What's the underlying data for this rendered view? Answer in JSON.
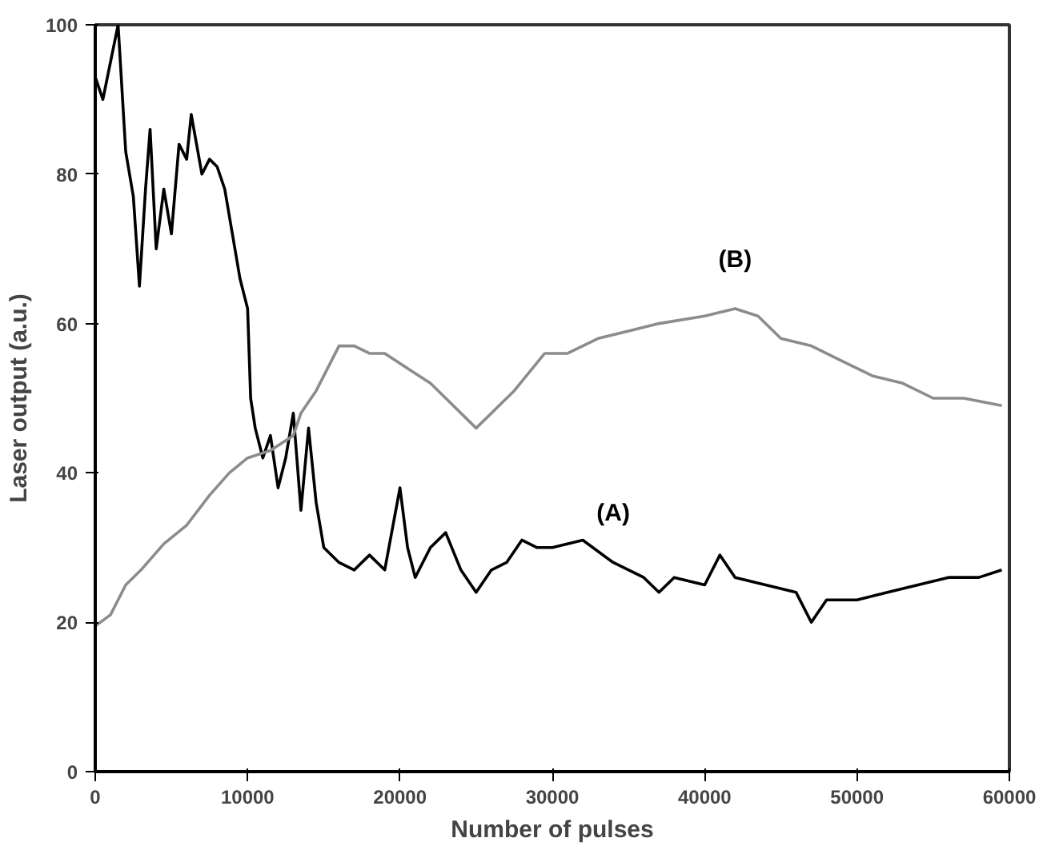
{
  "chart_data": {
    "type": "line",
    "xlabel": "Number of pulses",
    "ylabel": "Laser output (a.u.)",
    "xlim": [
      0,
      60000
    ],
    "ylim": [
      0,
      100
    ],
    "xticks": [
      0,
      10000,
      20000,
      30000,
      40000,
      50000,
      60000
    ],
    "yticks": [
      0,
      20,
      40,
      60,
      80,
      100
    ],
    "grid": false,
    "line_style": "solid",
    "marker": "none",
    "series": [
      {
        "name": "(A)",
        "color": "#000000",
        "x": [
          0,
          500,
          1000,
          1500,
          2000,
          2500,
          2900,
          3300,
          3600,
          4000,
          4500,
          5000,
          5500,
          6000,
          6300,
          7000,
          7500,
          8000,
          8500,
          9000,
          9500,
          10000,
          10200,
          10500,
          11000,
          11500,
          12000,
          12500,
          13000,
          13500,
          14000,
          14500,
          15000,
          16000,
          17000,
          18000,
          19000,
          20000,
          20500,
          21000,
          22000,
          23000,
          24000,
          25000,
          26000,
          27000,
          28000,
          29000,
          30000,
          32000,
          34000,
          36000,
          37000,
          38000,
          40000,
          41000,
          42000,
          44000,
          46000,
          47000,
          48000,
          50000,
          52000,
          54000,
          56000,
          58000,
          59500
        ],
        "values": [
          93,
          90,
          95,
          100,
          83,
          77,
          65,
          78,
          86,
          70,
          78,
          72,
          84,
          82,
          88,
          80,
          82,
          81,
          78,
          72,
          66,
          62,
          50,
          46,
          42,
          45,
          38,
          42,
          48,
          35,
          46,
          36,
          30,
          28,
          27,
          29,
          27,
          38,
          30,
          26,
          30,
          32,
          27,
          24,
          27,
          28,
          31,
          30,
          30,
          31,
          28,
          26,
          24,
          26,
          25,
          29,
          26,
          25,
          24,
          20,
          23,
          23,
          24,
          25,
          26,
          26,
          27
        ]
      },
      {
        "name": "(B)",
        "color": "#8c8c8c",
        "x": [
          0,
          1000,
          2000,
          3000,
          4500,
          6000,
          7500,
          8800,
          10000,
          11500,
          13000,
          13500,
          14500,
          16000,
          17000,
          18000,
          19000,
          20500,
          22000,
          23500,
          25000,
          26000,
          27500,
          29500,
          31000,
          33000,
          35000,
          37000,
          40000,
          42000,
          43500,
          45000,
          47000,
          49000,
          51000,
          53000,
          55000,
          57000,
          59500
        ],
        "values": [
          19.5,
          21,
          25,
          27,
          30.5,
          33,
          37,
          40,
          42,
          43,
          45,
          48,
          51,
          57,
          57,
          56,
          56,
          54,
          52,
          49,
          46,
          48,
          51,
          56,
          56,
          58,
          59,
          60,
          61,
          62,
          61,
          58,
          57,
          55,
          53,
          52,
          50,
          50,
          49
        ]
      }
    ]
  }
}
